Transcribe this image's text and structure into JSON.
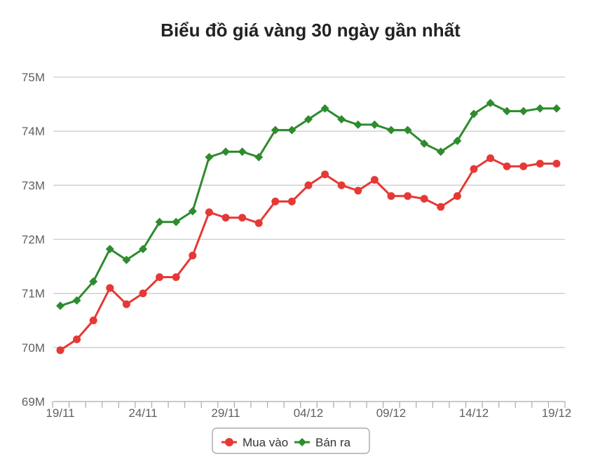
{
  "chart_data": {
    "type": "line",
    "title": "Biểu đồ giá vàng 30 ngày gần nhất",
    "xlabel": "",
    "ylabel": "",
    "ylim": [
      69,
      75
    ],
    "yticks": [
      "69M",
      "70M",
      "71M",
      "72M",
      "73M",
      "74M",
      "75M"
    ],
    "yticks_values": [
      69,
      70,
      71,
      72,
      73,
      74,
      75
    ],
    "x": [
      "19/11",
      "20/11",
      "21/11",
      "22/11",
      "23/11",
      "24/11",
      "25/11",
      "26/11",
      "27/11",
      "28/11",
      "29/11",
      "30/11",
      "01/12",
      "02/12",
      "03/12",
      "04/12",
      "05/12",
      "06/12",
      "07/12",
      "08/12",
      "09/12",
      "10/12",
      "11/12",
      "12/12",
      "13/12",
      "14/12",
      "15/12",
      "16/12",
      "17/12",
      "18/12",
      "19/12"
    ],
    "xtick_labels": [
      "19/11",
      "24/11",
      "29/11",
      "04/12",
      "09/12",
      "14/12",
      "19/12"
    ],
    "grid": true,
    "legend": "bottom",
    "series": [
      {
        "name": "Mua vào",
        "color": "#e53935",
        "marker": "circle",
        "values": [
          69.95,
          70.15,
          70.5,
          71.1,
          70.8,
          71.0,
          71.3,
          71.3,
          71.7,
          72.5,
          72.4,
          72.4,
          72.3,
          72.7,
          72.7,
          73.0,
          73.2,
          73.0,
          72.9,
          73.1,
          72.8,
          72.8,
          72.75,
          72.6,
          72.8,
          73.3,
          73.5,
          73.35,
          73.35,
          73.4,
          73.4
        ]
      },
      {
        "name": "Bán ra",
        "color": "#2e8b2e",
        "marker": "diamond",
        "values": [
          70.77,
          70.87,
          71.22,
          71.82,
          71.62,
          71.82,
          72.32,
          72.32,
          72.52,
          73.52,
          73.62,
          73.62,
          73.52,
          74.02,
          74.02,
          74.22,
          74.42,
          74.22,
          74.12,
          74.12,
          74.02,
          74.02,
          73.77,
          73.62,
          73.82,
          74.32,
          74.52,
          74.37,
          74.37,
          74.42,
          74.42
        ]
      }
    ]
  }
}
